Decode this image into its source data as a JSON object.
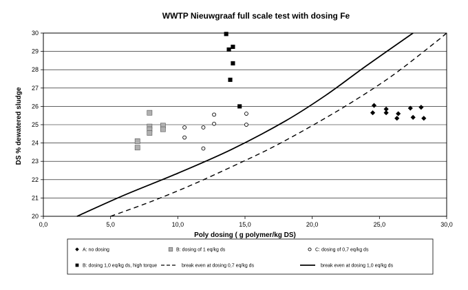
{
  "chart_data": {
    "type": "scatter",
    "title": "WWTP Nieuwgraaf full scale test with dosing Fe",
    "xlabel": "Poly dosing ( g polymer/kg DS)",
    "ylabel": "DS % dewatered sludge",
    "xlim": [
      0,
      30
    ],
    "ylim": [
      20,
      30
    ],
    "x_ticks": [
      "0,0",
      "5,0",
      "10,0",
      "15,0",
      "20,0",
      "25,0",
      "30,0"
    ],
    "y_ticks": [
      "20",
      "21",
      "22",
      "23",
      "24",
      "25",
      "26",
      "27",
      "28",
      "29",
      "30"
    ],
    "grid": "horizontal",
    "legend_position": "bottom",
    "series": [
      {
        "name": "A: no dosing",
        "marker": "diamond",
        "color": "#000000",
        "points": [
          [
            24.5,
            25.65
          ],
          [
            24.6,
            26.05
          ],
          [
            25.5,
            25.65
          ],
          [
            25.5,
            25.85
          ],
          [
            26.3,
            25.35
          ],
          [
            26.4,
            25.6
          ],
          [
            27.3,
            25.9
          ],
          [
            27.5,
            25.4
          ],
          [
            28.1,
            25.95
          ],
          [
            28.3,
            25.35
          ]
        ]
      },
      {
        "name": "B: dosing of 1 eq/kg ds",
        "marker": "square",
        "color": "#b0b0b0",
        "points": [
          [
            7.0,
            24.1
          ],
          [
            7.0,
            23.75
          ],
          [
            7.9,
            25.65
          ],
          [
            7.9,
            24.9
          ],
          [
            7.9,
            24.75
          ],
          [
            7.9,
            24.55
          ],
          [
            8.9,
            24.95
          ],
          [
            8.9,
            24.75
          ]
        ]
      },
      {
        "name": "C: dosing of 0,7 eq/kg ds",
        "marker": "circle",
        "color": "#000000",
        "points": [
          [
            10.5,
            24.85
          ],
          [
            10.5,
            24.3
          ],
          [
            11.9,
            24.85
          ],
          [
            11.9,
            23.7
          ],
          [
            12.7,
            25.55
          ],
          [
            12.7,
            25.05
          ],
          [
            15.1,
            25.6
          ],
          [
            15.1,
            25.0
          ]
        ]
      },
      {
        "name": "B: dosing 1,0 eq/kg ds, high torque",
        "marker": "filled-square",
        "color": "#000000",
        "points": [
          [
            13.6,
            29.95
          ],
          [
            13.8,
            29.1
          ],
          [
            14.1,
            29.25
          ],
          [
            14.1,
            28.35
          ],
          [
            13.9,
            27.45
          ],
          [
            14.6,
            26.0
          ]
        ]
      },
      {
        "name": "break even at dosing 0,7 eq/kg ds",
        "line": "dashed",
        "color": "#000000",
        "points": [
          [
            5.0,
            20.0
          ],
          [
            8.0,
            20.8
          ],
          [
            11.0,
            21.7
          ],
          [
            14.0,
            22.7
          ],
          [
            17.0,
            23.75
          ],
          [
            20.0,
            24.95
          ],
          [
            23.0,
            26.25
          ],
          [
            26.0,
            27.7
          ],
          [
            29.0,
            29.4
          ],
          [
            30.0,
            30.0
          ]
        ]
      },
      {
        "name": "break even at dosing 1,0 eq/kg ds",
        "line": "solid",
        "color": "#000000",
        "points": [
          [
            2.5,
            20.0
          ],
          [
            6.0,
            21.15
          ],
          [
            10.0,
            22.35
          ],
          [
            14.0,
            23.65
          ],
          [
            18.0,
            25.2
          ],
          [
            21.0,
            26.6
          ],
          [
            24.0,
            28.2
          ],
          [
            27.5,
            30.0
          ]
        ]
      }
    ]
  }
}
